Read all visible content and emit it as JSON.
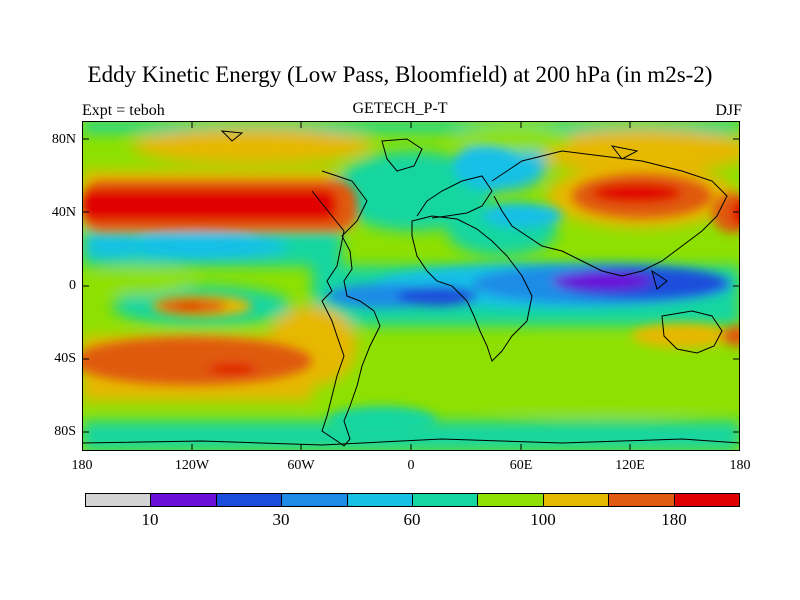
{
  "figure": {
    "title": "Eddy Kinetic Energy (Low Pass, Bloomfield) at 200 hPa (in m2s-2)",
    "left_label": "Expt = teboh",
    "center_label": "GETECH_P-T",
    "right_label": "DJF"
  },
  "axes": {
    "y_ticks": [
      "80N",
      "40N",
      "0",
      "40S",
      "80S"
    ],
    "x_ticks": [
      "180",
      "120W",
      "60W",
      "0",
      "60E",
      "120E",
      "180"
    ]
  },
  "colorbar": {
    "colors": [
      "#d3d3d3",
      "#6a0fd8",
      "#1a4ddb",
      "#1e8ce6",
      "#19c0e6",
      "#13d6a0",
      "#8ee000",
      "#e6b800",
      "#e05a10",
      "#e00000"
    ],
    "labels": [
      "10",
      "30",
      "60",
      "100",
      "180"
    ]
  },
  "chart_data": {
    "type": "heatmap",
    "title": "Eddy Kinetic Energy (Low Pass, Bloomfield) at 200 hPa (in m2s-2)",
    "projection": "cylindrical equidistant",
    "xlim": [
      -180,
      180
    ],
    "ylim": [
      -90,
      90
    ],
    "x_ticks": [
      -180,
      -120,
      -60,
      0,
      60,
      120,
      180
    ],
    "y_ticks": [
      80,
      40,
      0,
      -40,
      -80
    ],
    "legend": "bottom colorbar",
    "color_levels": [
      10,
      20,
      30,
      45,
      60,
      80,
      100,
      140,
      180
    ]
  }
}
